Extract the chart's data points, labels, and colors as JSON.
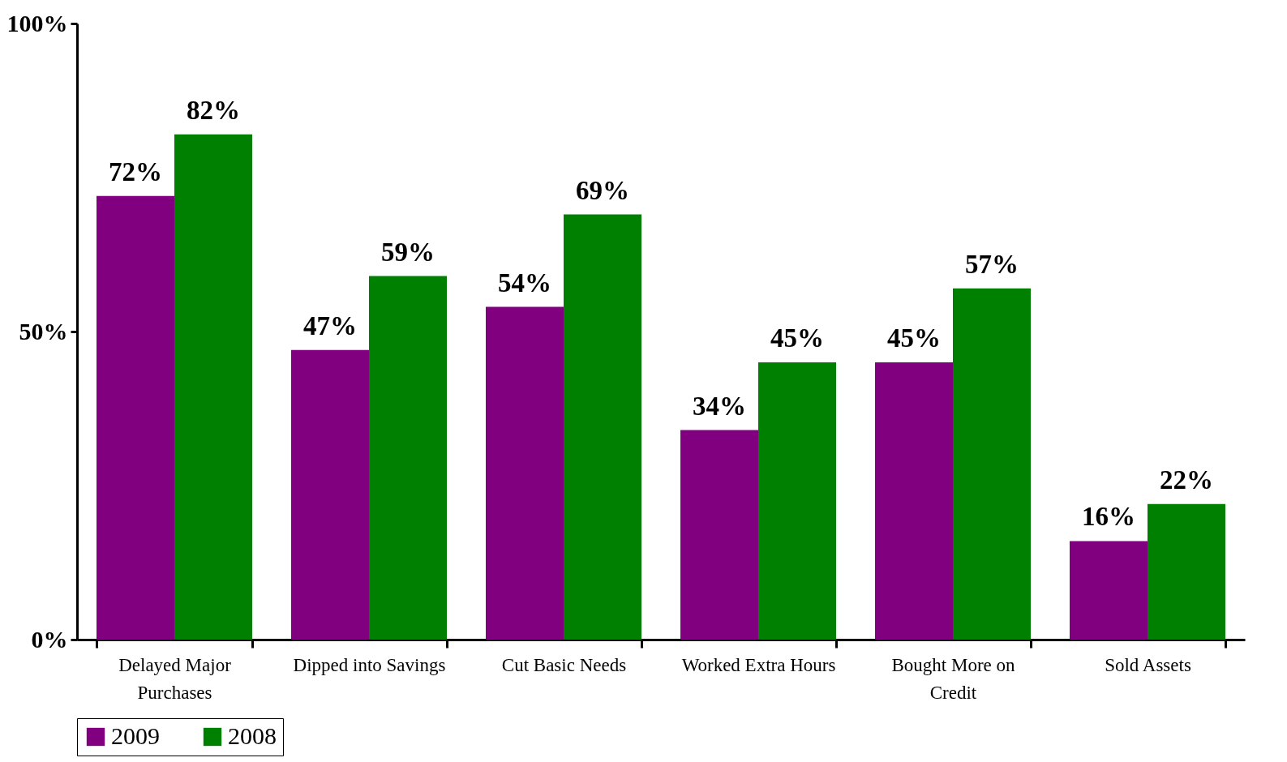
{
  "chart_data": {
    "type": "bar",
    "categories": [
      "Delayed Major Purchases",
      "Dipped into Savings",
      "Cut Basic Needs",
      "Worked Extra Hours",
      "Bought More on Credit",
      "Sold Assets"
    ],
    "series": [
      {
        "name": "2009",
        "color": "#800080",
        "values": [
          72,
          47,
          54,
          34,
          45,
          16
        ],
        "value_labels": [
          "72%",
          "47%",
          "54%",
          "34%",
          "45%",
          "16%"
        ]
      },
      {
        "name": "2008",
        "color": "#008000",
        "values": [
          82,
          59,
          69,
          45,
          57,
          22
        ],
        "value_labels": [
          "82%",
          "59%",
          "69%",
          "45%",
          "57%",
          "22%"
        ]
      }
    ],
    "ylim": [
      0,
      100
    ],
    "yticks": [
      {
        "value": 0,
        "label": "0%"
      },
      {
        "value": 50,
        "label": "50%"
      },
      {
        "value": 100,
        "label": "100%"
      }
    ],
    "grid": false,
    "legend": "bottom"
  }
}
